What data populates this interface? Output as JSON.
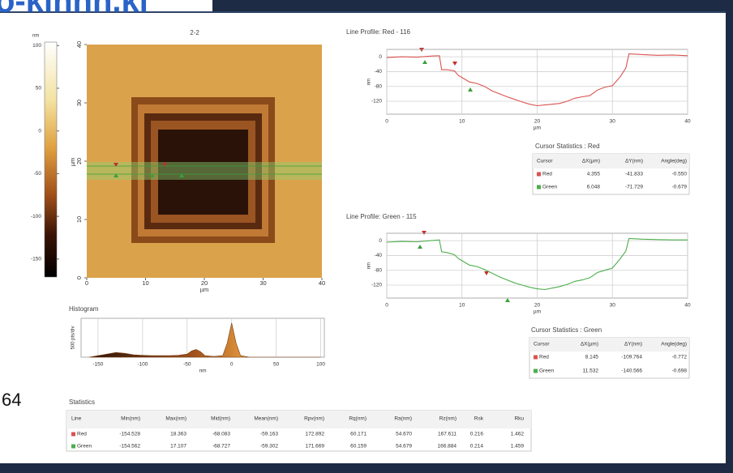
{
  "watermark": "o-kinnn.ki",
  "slide_number": "64",
  "image_panel": {
    "title": "2-2",
    "colorbar_unit": "nm",
    "colorbar_range": [
      -171,
      104
    ],
    "colorbar_ticks": [
      100,
      50,
      0,
      -50,
      -100,
      -150
    ],
    "x_label": "µm",
    "y_label": "µm",
    "xlim": [
      0,
      40
    ],
    "ylim": [
      0,
      40
    ],
    "xticks": [
      0,
      10,
      20,
      30,
      40
    ],
    "yticks": [
      0,
      10,
      20,
      30,
      40
    ]
  },
  "chart_data": [
    {
      "type": "line",
      "title": "Line Profile: Red - 116",
      "x_label": "µm",
      "y_label": "nm",
      "color": "#d9534f",
      "xlim": [
        0,
        40
      ],
      "ylim": [
        -155,
        20
      ],
      "xticks": [
        0,
        10,
        20,
        30,
        40
      ],
      "yticks": [
        0,
        -40,
        -80,
        -120
      ],
      "grid": true,
      "x": [
        0,
        2,
        4,
        6,
        7,
        7.3,
        8,
        9,
        9.5,
        10.5,
        11,
        12,
        13,
        14,
        15,
        16,
        17,
        18,
        19,
        20,
        21,
        22,
        23,
        24,
        25,
        26,
        27,
        28,
        29,
        30,
        31,
        31.8,
        32.2,
        34,
        36,
        38,
        40
      ],
      "values": [
        -2,
        0,
        -1,
        2,
        3,
        -35,
        -35,
        -38,
        -50,
        -62,
        -68,
        -72,
        -80,
        -92,
        -100,
        -108,
        -115,
        -122,
        -128,
        -132,
        -130,
        -128,
        -126,
        -120,
        -112,
        -108,
        -105,
        -90,
        -82,
        -78,
        -55,
        -30,
        8,
        6,
        4,
        5,
        3
      ]
    },
    {
      "type": "line",
      "title": "Line Profile: Green - 115",
      "x_label": "µm",
      "y_label": "nm",
      "color": "#4cae4c",
      "xlim": [
        0,
        40
      ],
      "ylim": [
        -155,
        20
      ],
      "xticks": [
        0,
        10,
        20,
        30,
        40
      ],
      "yticks": [
        0,
        -40,
        -80,
        -120
      ],
      "grid": true,
      "x": [
        0,
        2,
        4,
        6,
        7,
        7.3,
        8,
        9,
        9.5,
        10.5,
        11,
        12,
        13,
        14,
        15,
        16,
        17,
        18,
        19,
        20,
        21,
        22,
        23,
        24,
        25,
        26,
        27,
        28,
        29,
        30,
        31,
        31.8,
        32.2,
        34,
        36,
        38,
        40
      ],
      "values": [
        -4,
        -2,
        -3,
        0,
        2,
        -30,
        -32,
        -38,
        -48,
        -60,
        -66,
        -70,
        -78,
        -88,
        -98,
        -106,
        -114,
        -120,
        -126,
        -130,
        -132,
        -128,
        -124,
        -118,
        -110,
        -106,
        -100,
        -86,
        -80,
        -74,
        -50,
        -28,
        6,
        4,
        3,
        2,
        2
      ]
    },
    {
      "type": "area",
      "title": "Histogram",
      "x_label": "nm",
      "y_label": "500 pts/div",
      "xlim": [
        -169,
        104
      ],
      "ylim": [
        0,
        2500
      ],
      "xticks": [
        -150,
        -100,
        -50,
        0,
        50,
        100
      ],
      "grid": true,
      "x": [
        -160,
        -150,
        -140,
        -130,
        -120,
        -110,
        -100,
        -90,
        -80,
        -70,
        -60,
        -50,
        -45,
        -40,
        -35,
        -30,
        -20,
        -10,
        -5,
        0,
        5,
        10,
        20,
        30,
        50,
        100
      ],
      "values": [
        0,
        100,
        200,
        300,
        250,
        150,
        120,
        100,
        100,
        100,
        120,
        200,
        400,
        500,
        350,
        100,
        50,
        100,
        900,
        2200,
        900,
        100,
        0,
        0,
        0,
        0
      ]
    }
  ],
  "cursor_tables": [
    {
      "title": "Cursor Statistics : Red",
      "headers": [
        "Cursor",
        "ΔX(µm)",
        "ΔY(nm)",
        "Angle(deg)"
      ],
      "rows": [
        [
          "Red",
          "4.355",
          "-41.833",
          "-0.550"
        ],
        [
          "Green",
          "6.048",
          "-71.729",
          "-0.679"
        ]
      ]
    },
    {
      "title": "Cursor Statistics : Green",
      "headers": [
        "Cursor",
        "ΔX(µm)",
        "ΔY(nm)",
        "Angle(deg)"
      ],
      "rows": [
        [
          "Red",
          "8.145",
          "-109.764",
          "-0.772"
        ],
        [
          "Green",
          "11.532",
          "-140.566",
          "-0.698"
        ]
      ]
    }
  ],
  "statistics": {
    "title": "Statistics",
    "headers": [
      "Line",
      "Min(nm)",
      "Max(nm)",
      "Mid(nm)",
      "Mean(nm)",
      "Rpv(nm)",
      "Rq(nm)",
      "Ra(nm)",
      "Rz(nm)",
      "Rsk",
      "Rku"
    ],
    "rows": [
      [
        "Red",
        "-154.528",
        "18.363",
        "-68.083",
        "-59.163",
        "172.892",
        "60.171",
        "54.670",
        "167.611",
        "0.216",
        "1.462"
      ],
      [
        "Green",
        "-154.562",
        "17.107",
        "-68.727",
        "-59.302",
        "171.669",
        "60.159",
        "54.679",
        "166.884",
        "0.214",
        "1.459"
      ]
    ]
  }
}
